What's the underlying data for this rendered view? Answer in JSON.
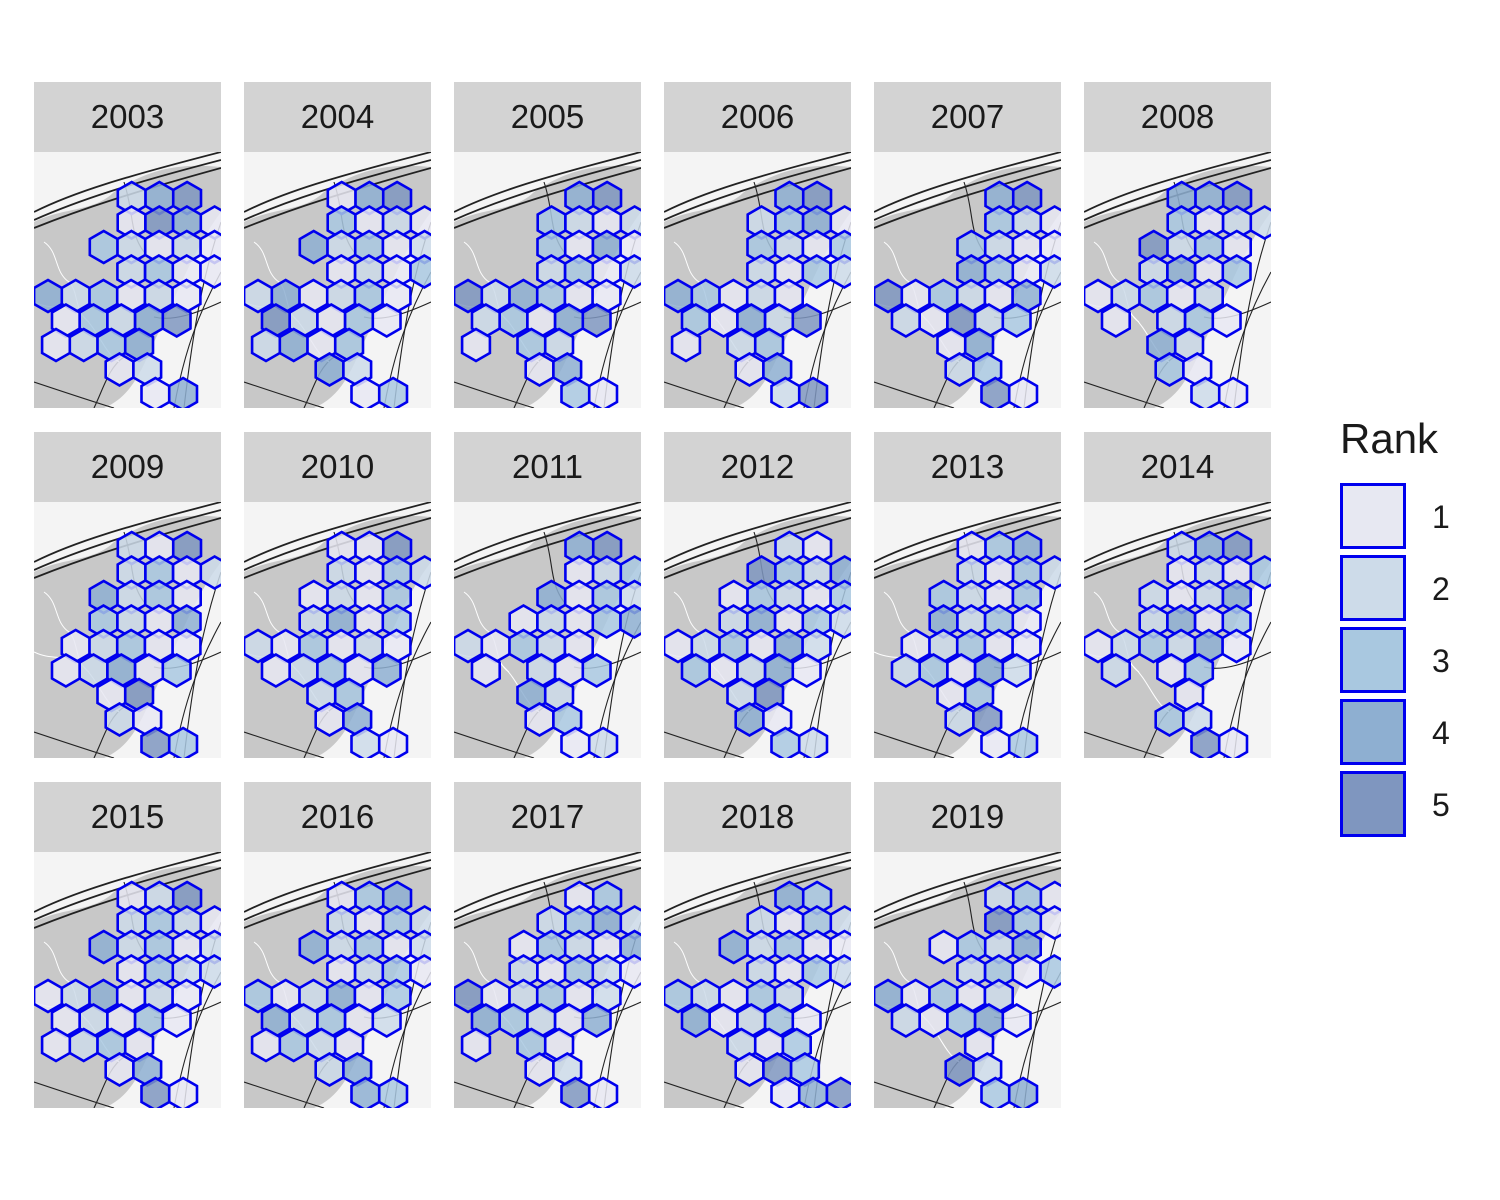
{
  "colors": {
    "hex_stroke": "#0000ee",
    "strip_bg": "#d3d3d3",
    "basemap_land": "#c8c8c8",
    "basemap_bg": "#f4f4f4",
    "road": "#222222",
    "rank_fills": [
      "#e7e8f2",
      "#cddbe9",
      "#a9c8e0",
      "#8eafd1",
      "#7f96bf"
    ]
  },
  "legend": {
    "title": "Rank",
    "items": [
      {
        "label": "1",
        "rank": 1
      },
      {
        "label": "2",
        "rank": 2
      },
      {
        "label": "3",
        "rank": 3
      },
      {
        "label": "4",
        "rank": 4
      },
      {
        "label": "5",
        "rank": 5
      }
    ]
  },
  "facets": [
    {
      "year": "2003",
      "cells": [
        "a1",
        "a2",
        "a3",
        "b1",
        "b2",
        "b3",
        "b4",
        "c1",
        "c2",
        "c3",
        "c4",
        "c5",
        "d2",
        "d3",
        "d4",
        "d5",
        "e0",
        "e1",
        "e2",
        "e3",
        "e4",
        "e5",
        "f0",
        "f1",
        "f2",
        "f3",
        "f4",
        "g0",
        "g1",
        "g2",
        "g3",
        "h1",
        "h2",
        "i2",
        "i3"
      ],
      "ranks": [
        2,
        4,
        5,
        1,
        5,
        4,
        1,
        3,
        2,
        1,
        2,
        1,
        2,
        3,
        1,
        1,
        4,
        2,
        3,
        1,
        2,
        1,
        1,
        3,
        2,
        4,
        5,
        1,
        2,
        3,
        4,
        1,
        2,
        1,
        4
      ]
    },
    {
      "year": "2004",
      "cells": [
        "a1",
        "a2",
        "a3",
        "b1",
        "b2",
        "b3",
        "b4",
        "c1",
        "c2",
        "c3",
        "c4",
        "c5",
        "d2",
        "d3",
        "d4",
        "d5",
        "e0",
        "e1",
        "e2",
        "e3",
        "e4",
        "e5",
        "f0",
        "f1",
        "f2",
        "f3",
        "f4",
        "g0",
        "g1",
        "g2",
        "g3",
        "h1",
        "h2",
        "i2",
        "i3"
      ],
      "ranks": [
        1,
        4,
        5,
        3,
        1,
        2,
        1,
        4,
        2,
        3,
        1,
        2,
        1,
        2,
        1,
        3,
        2,
        4,
        1,
        2,
        3,
        1,
        5,
        2,
        1,
        3,
        1,
        2,
        4,
        1,
        3,
        4,
        2,
        1,
        3
      ]
    },
    {
      "year": "2005",
      "cells": [
        "a2",
        "a3",
        "b1",
        "b2",
        "b3",
        "b4",
        "c2",
        "c3",
        "c4",
        "c5",
        "d2",
        "d3",
        "d4",
        "d5",
        "e0",
        "e1",
        "e2",
        "e3",
        "e4",
        "e5",
        "f0",
        "f1",
        "f2",
        "f3",
        "f4",
        "g0",
        "g2",
        "g3",
        "h1",
        "h2",
        "i2",
        "i3"
      ],
      "ranks": [
        4,
        5,
        3,
        2,
        1,
        2,
        3,
        1,
        4,
        1,
        2,
        3,
        1,
        2,
        5,
        2,
        4,
        3,
        1,
        1,
        2,
        3,
        1,
        4,
        5,
        1,
        3,
        2,
        1,
        4,
        3,
        1
      ]
    },
    {
      "year": "2006",
      "cells": [
        "a2",
        "a3",
        "b1",
        "b2",
        "b3",
        "b4",
        "c2",
        "c3",
        "c4",
        "c5",
        "d2",
        "d3",
        "d4",
        "d5",
        "e0",
        "e1",
        "e2",
        "e3",
        "e4",
        "f0",
        "f1",
        "f2",
        "f3",
        "f4",
        "g0",
        "g2",
        "g3",
        "h1",
        "h2",
        "i2",
        "i3"
      ],
      "ranks": [
        4,
        5,
        2,
        3,
        4,
        1,
        3,
        2,
        1,
        3,
        2,
        1,
        3,
        2,
        4,
        3,
        1,
        2,
        1,
        3,
        1,
        4,
        2,
        5,
        1,
        2,
        3,
        1,
        4,
        2,
        5
      ]
    },
    {
      "year": "2007",
      "cells": [
        "a2",
        "a3",
        "b2",
        "b3",
        "b4",
        "b5",
        "c2",
        "c3",
        "c4",
        "c5",
        "d2",
        "d3",
        "d4",
        "d5",
        "e0",
        "e1",
        "e2",
        "e3",
        "e4",
        "e5",
        "f0",
        "f1",
        "f2",
        "f3",
        "f4",
        "g2",
        "g3",
        "h1",
        "h2",
        "i2",
        "i3"
      ],
      "ranks": [
        4,
        5,
        3,
        2,
        1,
        1,
        3,
        2,
        1,
        1,
        4,
        3,
        1,
        2,
        5,
        1,
        3,
        2,
        1,
        4,
        2,
        1,
        5,
        2,
        3,
        1,
        4,
        2,
        3,
        5,
        1
      ]
    },
    {
      "year": "2008",
      "cells": [
        "a1",
        "a2",
        "a3",
        "b1",
        "b2",
        "b3",
        "b4",
        "c1",
        "c2",
        "c3",
        "c4",
        "d1",
        "d2",
        "d3",
        "d4",
        "e0",
        "e1",
        "e2",
        "e3",
        "e4",
        "f0",
        "f2",
        "f3",
        "f4",
        "g2",
        "g3",
        "h1",
        "h2",
        "i2",
        "i3"
      ],
      "ranks": [
        4,
        4,
        5,
        3,
        1,
        2,
        2,
        5,
        2,
        3,
        1,
        2,
        4,
        1,
        3,
        1,
        2,
        3,
        1,
        2,
        1,
        2,
        3,
        1,
        4,
        2,
        3,
        1,
        2,
        1
      ]
    },
    {
      "year": "2009",
      "cells": [
        "a1",
        "a2",
        "a3",
        "b1",
        "b2",
        "b3",
        "b4",
        "c1",
        "c2",
        "c3",
        "c4",
        "d1",
        "d2",
        "d3",
        "d4",
        "e1",
        "e2",
        "e3",
        "e4",
        "e5",
        "f0",
        "f1",
        "f2",
        "f3",
        "f4",
        "g2",
        "g3",
        "h1",
        "h2",
        "i2",
        "i3"
      ],
      "ranks": [
        2,
        1,
        5,
        2,
        3,
        1,
        2,
        4,
        2,
        3,
        1,
        3,
        2,
        1,
        4,
        1,
        2,
        3,
        1,
        1,
        1,
        2,
        4,
        1,
        3,
        1,
        5,
        2,
        1,
        5,
        3
      ]
    },
    {
      "year": "2010",
      "cells": [
        "a1",
        "a2",
        "a3",
        "b1",
        "b2",
        "b3",
        "b4",
        "c1",
        "c2",
        "c3",
        "c4",
        "d1",
        "d2",
        "d3",
        "d4",
        "e0",
        "e1",
        "e2",
        "e3",
        "e4",
        "e5",
        "f0",
        "f1",
        "f2",
        "f3",
        "f4",
        "g2",
        "g3",
        "h1",
        "h2",
        "i2",
        "i3"
      ],
      "ranks": [
        1,
        1,
        5,
        2,
        1,
        3,
        2,
        1,
        2,
        1,
        3,
        2,
        4,
        1,
        3,
        2,
        1,
        3,
        1,
        2,
        1,
        1,
        2,
        3,
        1,
        4,
        2,
        3,
        1,
        4,
        2,
        1
      ]
    },
    {
      "year": "2011",
      "cells": [
        "a2",
        "a3",
        "b2",
        "b3",
        "b4",
        "b5",
        "c2",
        "c3",
        "c4",
        "c5",
        "d1",
        "d2",
        "d3",
        "d4",
        "d5",
        "e0",
        "e1",
        "e2",
        "e3",
        "e4",
        "f0",
        "f2",
        "f3",
        "f4",
        "g2",
        "g3",
        "h1",
        "h2",
        "i2",
        "i3"
      ],
      "ranks": [
        4,
        5,
        1,
        2,
        3,
        1,
        4,
        1,
        3,
        2,
        1,
        2,
        1,
        3,
        4,
        2,
        1,
        3,
        2,
        1,
        1,
        2,
        1,
        3,
        4,
        2,
        1,
        3,
        1,
        2
      ]
    },
    {
      "year": "2012",
      "cells": [
        "a2",
        "a3",
        "b1",
        "b2",
        "b3",
        "b4",
        "b5",
        "c1",
        "c2",
        "c3",
        "c4",
        "c5",
        "d1",
        "d2",
        "d3",
        "d4",
        "d5",
        "e0",
        "e1",
        "e2",
        "e3",
        "e4",
        "e5",
        "f0",
        "f1",
        "f2",
        "f3",
        "f4",
        "g2",
        "g3",
        "h1",
        "h2",
        "i2",
        "i3"
      ],
      "ranks": [
        2,
        1,
        5,
        3,
        2,
        4,
        2,
        1,
        3,
        2,
        1,
        3,
        2,
        4,
        1,
        3,
        2,
        1,
        2,
        3,
        1,
        4,
        2,
        3,
        1,
        2,
        4,
        1,
        2,
        5,
        4,
        1,
        3,
        2
      ]
    },
    {
      "year": "2013",
      "cells": [
        "a1",
        "a2",
        "a3",
        "b1",
        "b2",
        "b3",
        "b4",
        "c1",
        "c2",
        "c3",
        "c4",
        "d1",
        "d2",
        "d3",
        "d4",
        "e1",
        "e2",
        "e3",
        "e4",
        "e5",
        "f0",
        "f1",
        "f2",
        "f3",
        "f4",
        "g2",
        "g3",
        "h1",
        "h2",
        "i2",
        "i3"
      ],
      "ranks": [
        1,
        3,
        4,
        2,
        1,
        3,
        2,
        3,
        2,
        1,
        3,
        4,
        2,
        3,
        1,
        1,
        2,
        3,
        1,
        1,
        2,
        3,
        1,
        4,
        2,
        1,
        3,
        2,
        5,
        1,
        3
      ]
    },
    {
      "year": "2014",
      "cells": [
        "a1",
        "a2",
        "a3",
        "b1",
        "b2",
        "b3",
        "b4",
        "c1",
        "c2",
        "c3",
        "c4",
        "d1",
        "d2",
        "d3",
        "d4",
        "e0",
        "e1",
        "e2",
        "e3",
        "e4",
        "e5",
        "f0",
        "f2",
        "f3",
        "g3",
        "h1",
        "h2",
        "i2",
        "i3"
      ],
      "ranks": [
        2,
        4,
        5,
        1,
        2,
        1,
        3,
        2,
        1,
        2,
        4,
        2,
        4,
        1,
        3,
        1,
        2,
        3,
        2,
        4,
        1,
        2,
        1,
        3,
        1,
        3,
        2,
        5,
        1
      ]
    },
    {
      "year": "2015",
      "cells": [
        "a1",
        "a2",
        "a3",
        "b1",
        "b2",
        "b3",
        "b4",
        "c1",
        "c2",
        "c3",
        "c4",
        "c5",
        "d2",
        "d3",
        "d4",
        "d5",
        "e0",
        "e1",
        "e2",
        "e3",
        "e4",
        "e5",
        "f0",
        "f1",
        "f2",
        "f3",
        "f4",
        "g0",
        "g1",
        "g2",
        "g3",
        "h1",
        "h2",
        "i2",
        "i3"
      ],
      "ranks": [
        1,
        2,
        5,
        2,
        3,
        2,
        1,
        4,
        2,
        3,
        1,
        2,
        1,
        3,
        2,
        2,
        1,
        2,
        4,
        1,
        2,
        1,
        1,
        2,
        1,
        3,
        1,
        1,
        2,
        3,
        1,
        1,
        4,
        5,
        1
      ]
    },
    {
      "year": "2016",
      "cells": [
        "a1",
        "a2",
        "a3",
        "b1",
        "b2",
        "b3",
        "b4",
        "c1",
        "c2",
        "c3",
        "c4",
        "c5",
        "d2",
        "d3",
        "d4",
        "d5",
        "e0",
        "e1",
        "e2",
        "e3",
        "e4",
        "e5",
        "f0",
        "f1",
        "f2",
        "f3",
        "f4",
        "g0",
        "g1",
        "g2",
        "g3",
        "h1",
        "h2",
        "i2",
        "i3"
      ],
      "ranks": [
        1,
        3,
        4,
        2,
        1,
        3,
        2,
        4,
        2,
        3,
        1,
        2,
        1,
        2,
        3,
        1,
        3,
        1,
        2,
        4,
        1,
        3,
        4,
        2,
        3,
        1,
        2,
        1,
        3,
        2,
        1,
        2,
        4,
        4,
        3
      ]
    },
    {
      "year": "2017",
      "cells": [
        "a2",
        "a3",
        "b1",
        "b2",
        "b3",
        "b4",
        "c1",
        "c2",
        "c3",
        "c4",
        "c5",
        "d1",
        "d2",
        "d3",
        "d4",
        "d5",
        "e0",
        "e1",
        "e2",
        "e3",
        "e4",
        "e5",
        "f0",
        "f1",
        "f2",
        "f3",
        "f4",
        "g0",
        "g2",
        "g3",
        "h1",
        "h2",
        "i2",
        "i3"
      ],
      "ranks": [
        1,
        3,
        2,
        3,
        4,
        2,
        1,
        3,
        2,
        1,
        4,
        2,
        1,
        3,
        2,
        1,
        5,
        1,
        2,
        3,
        1,
        2,
        4,
        3,
        2,
        1,
        4,
        1,
        3,
        1,
        1,
        2,
        5,
        1
      ]
    },
    {
      "year": "2018",
      "cells": [
        "a2",
        "a3",
        "b1",
        "b2",
        "b3",
        "b4",
        "b5",
        "c1",
        "c2",
        "c3",
        "c4",
        "c5",
        "d2",
        "d3",
        "d4",
        "d5",
        "e0",
        "e1",
        "e2",
        "e3",
        "e4",
        "f0",
        "f1",
        "f2",
        "f3",
        "f4",
        "g2",
        "g3",
        "g4",
        "h1",
        "h2",
        "h3",
        "i2",
        "i3",
        "i4"
      ],
      "ranks": [
        4,
        3,
        2,
        1,
        3,
        2,
        1,
        4,
        2,
        3,
        1,
        1,
        2,
        1,
        3,
        2,
        3,
        2,
        1,
        3,
        2,
        4,
        1,
        2,
        3,
        1,
        2,
        1,
        3,
        1,
        5,
        3,
        1,
        4,
        5
      ]
    },
    {
      "year": "2019",
      "cells": [
        "a2",
        "a3",
        "a4",
        "b2",
        "b3",
        "b4",
        "c1",
        "c2",
        "c3",
        "c4",
        "d2",
        "d3",
        "d4",
        "d5",
        "e0",
        "e1",
        "e2",
        "e3",
        "e4",
        "f0",
        "f1",
        "f2",
        "f3",
        "f4",
        "g3",
        "h1",
        "h2",
        "i2",
        "i3"
      ],
      "ranks": [
        2,
        3,
        1,
        5,
        3,
        1,
        1,
        3,
        2,
        4,
        2,
        3,
        1,
        3,
        4,
        1,
        3,
        1,
        2,
        2,
        1,
        3,
        4,
        1,
        1,
        5,
        2,
        3,
        4
      ]
    }
  ]
}
